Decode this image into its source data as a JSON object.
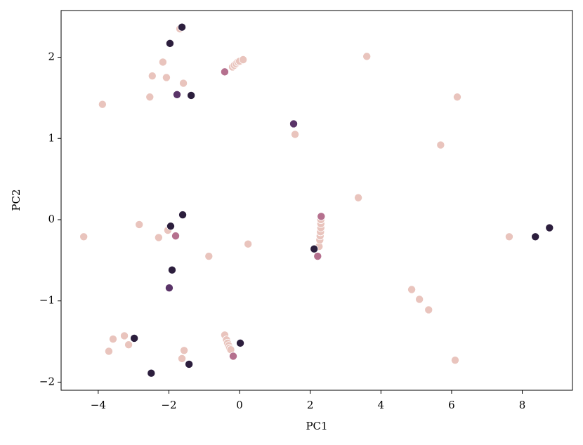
{
  "chart_data": {
    "type": "scatter",
    "xlabel": "PC1",
    "ylabel": "PC2",
    "xlim": [
      -5.05,
      9.42
    ],
    "ylim": [
      -2.1,
      2.575
    ],
    "xticks": [
      {
        "value": -4,
        "label": "−4"
      },
      {
        "value": -2,
        "label": "−2"
      },
      0,
      2,
      4,
      6,
      8
    ],
    "yticks": [
      {
        "value": -2,
        "label": "−2"
      },
      {
        "value": -1,
        "label": "−1"
      },
      0,
      1,
      2
    ],
    "series": [
      {
        "color": "#e9c4bd",
        "x": [
          -4.41,
          -3.88,
          -2.84,
          -2.29,
          -2.03,
          -2.54,
          -2.47,
          -2.17,
          -2.07,
          -1.59,
          -1.69,
          -0.87,
          0.24,
          3.6,
          6.16,
          5.69,
          3.36,
          4.87,
          5.09,
          5.35,
          6.1,
          7.63,
          -3.7,
          -3.58,
          -3.26,
          -3.14,
          -1.57,
          -1.63,
          1.57,
          -0.2,
          -0.15,
          -0.1,
          -0.05,
          0,
          0.1,
          2.25,
          2.27,
          2.28,
          2.29,
          2.3,
          2.3,
          2.3,
          -0.42,
          -0.37,
          -0.34,
          -0.31,
          -0.28,
          -0.25
        ],
        "values": [
          -0.21,
          1.42,
          -0.06,
          -0.22,
          -0.13,
          1.51,
          1.77,
          1.94,
          1.75,
          1.68,
          2.35,
          -0.45,
          -0.3,
          2.01,
          1.51,
          0.92,
          0.27,
          -0.86,
          -0.98,
          -1.11,
          -1.73,
          -0.21,
          -1.62,
          -1.47,
          -1.43,
          -1.54,
          -1.61,
          -1.71,
          1.05,
          1.88,
          1.9,
          1.92,
          1.94,
          1.95,
          1.97,
          -0.33,
          -0.25,
          -0.2,
          -0.15,
          -0.1,
          -0.05,
          0,
          -1.42,
          -1.48,
          -1.52,
          -1.55,
          -1.58,
          -1.6
        ]
      },
      {
        "color": "#b5708e",
        "x": [
          -0.42,
          -1.81,
          2.21,
          2.31,
          -0.18
        ],
        "values": [
          1.82,
          -0.2,
          -0.45,
          0.04,
          -1.68
        ]
      },
      {
        "color": "#5a3468",
        "x": [
          1.53,
          -1.77,
          -1.99
        ],
        "values": [
          1.18,
          1.54,
          -0.84
        ]
      },
      {
        "color": "#2c1e3d",
        "x": [
          -1.63,
          -1.97,
          -1.37,
          -1.61,
          -1.95,
          -1.91,
          2.11,
          8.37,
          8.77,
          -2.98,
          0.02,
          -2.5,
          -1.43
        ],
        "values": [
          2.37,
          2.17,
          1.53,
          0.06,
          -0.08,
          -0.62,
          -0.36,
          -0.21,
          -0.1,
          -1.46,
          -1.52,
          -1.89,
          -1.78
        ]
      }
    ]
  }
}
